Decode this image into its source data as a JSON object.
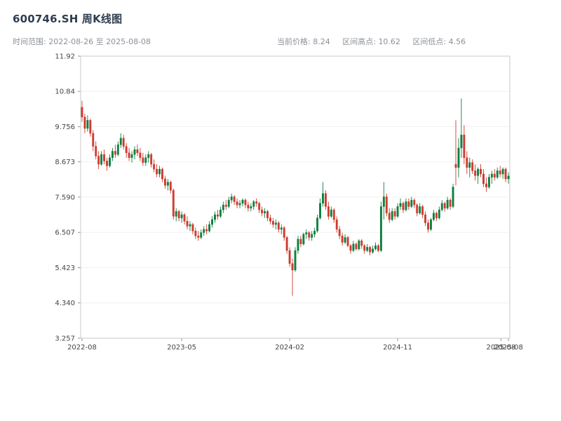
{
  "header": {
    "title": "600746.SH 周K线图",
    "time_range": "时间范围: 2022-08-26 至 2025-08-08",
    "stats": [
      {
        "label": "当前价格:",
        "value": "8.24"
      },
      {
        "label": "区间高点:",
        "value": "10.62"
      },
      {
        "label": "区间低点:",
        "value": "4.56"
      }
    ]
  },
  "chart_data": {
    "type": "candlestick",
    "symbol": "600746.SH",
    "frequency": "weekly",
    "title": "600746.SH 周K线图",
    "x_range": [
      "2022-08-26",
      "2025-08-08"
    ],
    "current_price": 8.24,
    "range_high": 10.62,
    "range_low": 4.56,
    "ylim": [
      3.257,
      11.92
    ],
    "grid": true,
    "colors": {
      "up": "#0c8040",
      "down": "#cf3b2e",
      "spine": "#c9c9c9",
      "grid": "#f1f1f1"
    },
    "y_ticks": [
      {
        "label": "11.92",
        "value": 11.92
      },
      {
        "label": "10.84",
        "value": 10.84
      },
      {
        "label": "9.756",
        "value": 9.756
      },
      {
        "label": "8.673",
        "value": 8.673
      },
      {
        "label": "7.590",
        "value": 7.59
      },
      {
        "label": "6.507",
        "value": 6.507
      },
      {
        "label": "5.423",
        "value": 5.423
      },
      {
        "label": "4.340",
        "value": 4.34
      },
      {
        "label": "3.257",
        "value": 3.257
      }
    ],
    "x_ticks": [
      {
        "label": "2022-08",
        "week": 0
      },
      {
        "label": "2023-05",
        "week": 36
      },
      {
        "label": "2024-02",
        "week": 75
      },
      {
        "label": "2024-11",
        "week": 114
      },
      {
        "label": "2025-08",
        "week": 151.3
      },
      {
        "label": "2025-08",
        "week": 154
      }
    ],
    "candles_format": [
      "open",
      "high",
      "low",
      "close"
    ],
    "candles": [
      [
        10.35,
        10.55,
        9.9,
        10.05
      ],
      [
        10.05,
        10.15,
        9.55,
        9.7
      ],
      [
        9.7,
        10.1,
        9.6,
        9.95
      ],
      [
        9.95,
        10.0,
        9.45,
        9.55
      ],
      [
        9.55,
        9.65,
        9.0,
        9.15
      ],
      [
        9.15,
        9.3,
        8.75,
        8.85
      ],
      [
        8.85,
        9.0,
        8.45,
        8.6
      ],
      [
        8.6,
        9.0,
        8.55,
        8.9
      ],
      [
        8.9,
        9.05,
        8.6,
        8.7
      ],
      [
        8.7,
        8.8,
        8.4,
        8.55
      ],
      [
        8.55,
        8.9,
        8.5,
        8.8
      ],
      [
        8.8,
        9.1,
        8.7,
        9.0
      ],
      [
        9.0,
        9.2,
        8.8,
        8.9
      ],
      [
        8.9,
        9.3,
        8.85,
        9.2
      ],
      [
        9.2,
        9.55,
        9.1,
        9.4
      ],
      [
        9.4,
        9.5,
        9.05,
        9.15
      ],
      [
        9.15,
        9.25,
        8.8,
        8.95
      ],
      [
        8.95,
        9.1,
        8.7,
        8.8
      ],
      [
        8.8,
        9.0,
        8.65,
        8.9
      ],
      [
        8.9,
        9.15,
        8.75,
        9.05
      ],
      [
        9.05,
        9.2,
        8.85,
        8.95
      ],
      [
        8.95,
        9.1,
        8.7,
        8.8
      ],
      [
        8.8,
        8.95,
        8.55,
        8.65
      ],
      [
        8.65,
        8.9,
        8.55,
        8.8
      ],
      [
        8.8,
        9.0,
        8.65,
        8.9
      ],
      [
        8.9,
        8.95,
        8.5,
        8.6
      ],
      [
        8.6,
        8.75,
        8.35,
        8.45
      ],
      [
        8.45,
        8.6,
        8.2,
        8.3
      ],
      [
        8.3,
        8.55,
        8.2,
        8.45
      ],
      [
        8.45,
        8.5,
        8.05,
        8.15
      ],
      [
        8.15,
        8.25,
        7.85,
        7.95
      ],
      [
        7.95,
        8.15,
        7.8,
        8.05
      ],
      [
        8.05,
        8.1,
        7.7,
        7.8
      ],
      [
        7.8,
        7.85,
        6.9,
        7.0
      ],
      [
        7.0,
        7.25,
        6.85,
        7.15
      ],
      [
        7.15,
        7.2,
        6.85,
        6.95
      ],
      [
        6.95,
        7.15,
        6.8,
        7.05
      ],
      [
        7.05,
        7.1,
        6.75,
        6.85
      ],
      [
        6.85,
        7.0,
        6.6,
        6.7
      ],
      [
        6.7,
        6.85,
        6.55,
        6.75
      ],
      [
        6.75,
        6.8,
        6.45,
        6.55
      ],
      [
        6.55,
        6.65,
        6.3,
        6.4
      ],
      [
        6.4,
        6.55,
        6.25,
        6.35
      ],
      [
        6.35,
        6.6,
        6.3,
        6.5
      ],
      [
        6.5,
        6.7,
        6.4,
        6.6
      ],
      [
        6.6,
        6.75,
        6.45,
        6.55
      ],
      [
        6.55,
        6.85,
        6.5,
        6.75
      ],
      [
        6.75,
        7.0,
        6.65,
        6.9
      ],
      [
        6.9,
        7.15,
        6.8,
        7.05
      ],
      [
        7.05,
        7.2,
        6.9,
        7.0
      ],
      [
        7.0,
        7.3,
        6.95,
        7.2
      ],
      [
        7.2,
        7.45,
        7.1,
        7.35
      ],
      [
        7.35,
        7.5,
        7.2,
        7.3
      ],
      [
        7.3,
        7.6,
        7.25,
        7.5
      ],
      [
        7.5,
        7.7,
        7.4,
        7.6
      ],
      [
        7.6,
        7.65,
        7.35,
        7.45
      ],
      [
        7.45,
        7.55,
        7.25,
        7.35
      ],
      [
        7.35,
        7.5,
        7.25,
        7.4
      ],
      [
        7.4,
        7.55,
        7.3,
        7.5
      ],
      [
        7.5,
        7.55,
        7.25,
        7.35
      ],
      [
        7.35,
        7.45,
        7.15,
        7.25
      ],
      [
        7.25,
        7.4,
        7.15,
        7.3
      ],
      [
        7.3,
        7.5,
        7.2,
        7.45
      ],
      [
        7.45,
        7.55,
        7.3,
        7.4
      ],
      [
        7.4,
        7.45,
        7.1,
        7.2
      ],
      [
        7.2,
        7.3,
        7.0,
        7.1
      ],
      [
        7.1,
        7.25,
        6.95,
        7.15
      ],
      [
        7.15,
        7.2,
        6.85,
        6.95
      ],
      [
        6.95,
        7.05,
        6.75,
        6.85
      ],
      [
        6.85,
        6.95,
        6.65,
        6.75
      ],
      [
        6.75,
        6.9,
        6.6,
        6.8
      ],
      [
        6.8,
        6.85,
        6.5,
        6.6
      ],
      [
        6.6,
        6.75,
        6.45,
        6.65
      ],
      [
        6.65,
        6.7,
        6.25,
        6.35
      ],
      [
        6.35,
        6.4,
        5.85,
        5.95
      ],
      [
        5.95,
        6.05,
        5.45,
        5.55
      ],
      [
        5.55,
        5.7,
        4.56,
        5.35
      ],
      [
        5.35,
        6.05,
        5.3,
        5.95
      ],
      [
        5.95,
        6.4,
        5.85,
        6.3
      ],
      [
        6.3,
        6.4,
        6.05,
        6.15
      ],
      [
        6.15,
        6.5,
        6.1,
        6.45
      ],
      [
        6.45,
        6.6,
        6.3,
        6.5
      ],
      [
        6.5,
        6.55,
        6.25,
        6.35
      ],
      [
        6.35,
        6.55,
        6.25,
        6.45
      ],
      [
        6.45,
        6.65,
        6.35,
        6.55
      ],
      [
        6.55,
        7.05,
        6.5,
        6.95
      ],
      [
        6.95,
        7.55,
        6.9,
        7.4
      ],
      [
        7.4,
        8.05,
        7.3,
        7.7
      ],
      [
        7.7,
        7.8,
        7.2,
        7.3
      ],
      [
        7.3,
        7.45,
        6.9,
        7.0
      ],
      [
        7.0,
        7.3,
        6.95,
        7.2
      ],
      [
        7.2,
        7.25,
        6.8,
        6.9
      ],
      [
        6.9,
        7.0,
        6.5,
        6.6
      ],
      [
        6.6,
        6.7,
        6.3,
        6.4
      ],
      [
        6.4,
        6.5,
        6.1,
        6.2
      ],
      [
        6.2,
        6.45,
        6.15,
        6.35
      ],
      [
        6.35,
        6.4,
        6.05,
        6.1
      ],
      [
        6.1,
        6.15,
        5.85,
        5.95
      ],
      [
        5.95,
        6.25,
        5.9,
        6.15
      ],
      [
        6.15,
        6.2,
        5.95,
        6.0
      ],
      [
        6.0,
        6.3,
        5.95,
        6.25
      ],
      [
        6.25,
        6.3,
        6.0,
        6.1
      ],
      [
        6.1,
        6.15,
        5.85,
        5.95
      ],
      [
        5.95,
        6.15,
        5.9,
        6.05
      ],
      [
        6.05,
        6.1,
        5.8,
        5.9
      ],
      [
        5.9,
        6.1,
        5.85,
        6.0
      ],
      [
        6.0,
        6.2,
        5.95,
        6.1
      ],
      [
        6.1,
        6.15,
        5.9,
        5.95
      ],
      [
        5.95,
        7.45,
        5.9,
        7.3
      ],
      [
        7.3,
        8.05,
        6.9,
        7.6
      ],
      [
        7.6,
        7.7,
        7.0,
        7.1
      ],
      [
        7.1,
        7.25,
        6.8,
        6.9
      ],
      [
        6.9,
        7.25,
        6.85,
        7.15
      ],
      [
        7.15,
        7.25,
        6.9,
        7.0
      ],
      [
        7.0,
        7.4,
        6.95,
        7.3
      ],
      [
        7.3,
        7.55,
        7.2,
        7.4
      ],
      [
        7.4,
        7.45,
        7.1,
        7.2
      ],
      [
        7.2,
        7.55,
        7.15,
        7.45
      ],
      [
        7.45,
        7.55,
        7.2,
        7.3
      ],
      [
        7.3,
        7.6,
        7.25,
        7.5
      ],
      [
        7.5,
        7.55,
        7.25,
        7.35
      ],
      [
        7.35,
        7.4,
        7.0,
        7.1
      ],
      [
        7.1,
        7.4,
        7.05,
        7.3
      ],
      [
        7.3,
        7.35,
        6.95,
        7.05
      ],
      [
        7.05,
        7.15,
        6.7,
        6.8
      ],
      [
        6.8,
        6.9,
        6.5,
        6.6
      ],
      [
        6.6,
        6.95,
        6.55,
        6.9
      ],
      [
        6.9,
        7.2,
        6.85,
        7.1
      ],
      [
        7.1,
        7.15,
        6.85,
        6.95
      ],
      [
        6.95,
        7.3,
        6.9,
        7.2
      ],
      [
        7.2,
        7.5,
        7.15,
        7.4
      ],
      [
        7.4,
        7.45,
        7.15,
        7.25
      ],
      [
        7.25,
        7.6,
        7.2,
        7.5
      ],
      [
        7.5,
        7.55,
        7.2,
        7.3
      ],
      [
        7.3,
        8.0,
        7.25,
        7.9
      ],
      [
        8.6,
        9.95,
        7.95,
        8.5
      ],
      [
        8.5,
        9.4,
        8.2,
        9.1
      ],
      [
        9.1,
        10.62,
        8.8,
        9.5
      ],
      [
        9.5,
        9.8,
        8.6,
        8.8
      ],
      [
        8.8,
        9.0,
        8.3,
        8.5
      ],
      [
        8.5,
        8.8,
        8.2,
        8.65
      ],
      [
        8.65,
        8.75,
        8.3,
        8.4
      ],
      [
        8.4,
        8.6,
        8.1,
        8.25
      ],
      [
        8.25,
        8.5,
        8.0,
        8.45
      ],
      [
        8.45,
        8.6,
        8.2,
        8.3
      ],
      [
        8.3,
        8.45,
        7.9,
        8.0
      ],
      [
        8.0,
        8.2,
        7.75,
        7.9
      ],
      [
        7.9,
        8.3,
        7.85,
        8.2
      ],
      [
        8.2,
        8.4,
        8.0,
        8.3
      ],
      [
        8.3,
        8.45,
        8.1,
        8.2
      ],
      [
        8.2,
        8.5,
        8.15,
        8.4
      ],
      [
        8.4,
        8.55,
        8.2,
        8.3
      ],
      [
        8.3,
        8.5,
        8.15,
        8.45
      ],
      [
        8.45,
        8.5,
        8.05,
        8.15
      ],
      [
        8.15,
        8.35,
        8.0,
        8.24
      ]
    ]
  }
}
